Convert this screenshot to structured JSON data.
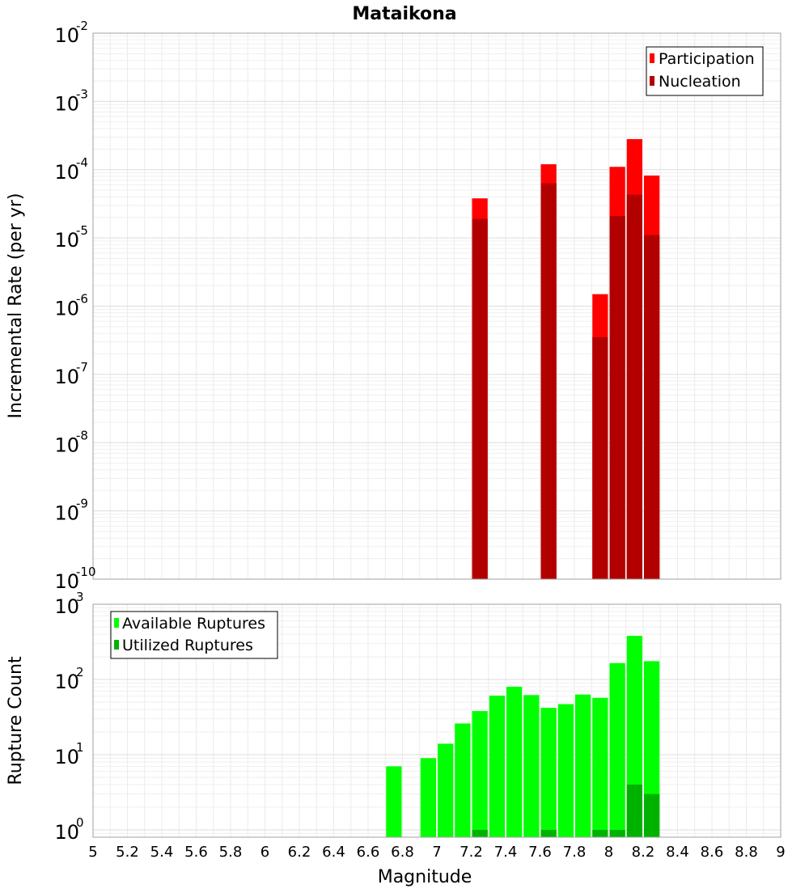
{
  "chart_data": [
    {
      "type": "bar",
      "title": "Mataikona",
      "ylabel": "Incremental Rate (per yr)",
      "yscale": "log",
      "ylim": [
        1e-10,
        0.01
      ],
      "xlim": [
        5,
        9
      ],
      "bin_width": 0.1,
      "y_ticks": [
        {
          "base": "10",
          "exp": "-10"
        },
        {
          "base": "10",
          "exp": "-9"
        },
        {
          "base": "10",
          "exp": "-8"
        },
        {
          "base": "10",
          "exp": "-7"
        },
        {
          "base": "10",
          "exp": "-6"
        },
        {
          "base": "10",
          "exp": "-5"
        },
        {
          "base": "10",
          "exp": "-4"
        },
        {
          "base": "10",
          "exp": "-3"
        },
        {
          "base": "10",
          "exp": "-2"
        }
      ],
      "legend": {
        "position": "top-right",
        "entries": [
          {
            "label": "Participation",
            "color": "#ff0000"
          },
          {
            "label": "Nucleation",
            "color": "#b20000"
          }
        ]
      },
      "series": [
        {
          "name": "Participation",
          "color": "#ff0000",
          "x": [
            7.25,
            7.65,
            7.95,
            8.05,
            8.15,
            8.25
          ],
          "values": [
            3.8e-05,
            0.00012,
            1.5e-06,
            0.00011,
            0.00028,
            8.2e-05
          ]
        },
        {
          "name": "Nucleation",
          "color": "#b20000",
          "x": [
            7.25,
            7.65,
            7.95,
            8.05,
            8.15,
            8.25
          ],
          "values": [
            1.9e-05,
            6.3e-05,
            3.5e-07,
            2.1e-05,
            4.3e-05,
            1.1e-05
          ]
        }
      ]
    },
    {
      "type": "bar",
      "xlabel": "Magnitude",
      "ylabel": "Rupture Count",
      "yscale": "log",
      "ylim": [
        0.8,
        1000
      ],
      "xlim": [
        5,
        9
      ],
      "bin_width": 0.1,
      "x_ticks": [
        "5",
        "5.2",
        "5.4",
        "5.6",
        "5.8",
        "6",
        "6.2",
        "6.4",
        "6.6",
        "6.8",
        "7",
        "7.2",
        "7.4",
        "7.6",
        "7.8",
        "8",
        "8.2",
        "8.4",
        "8.6",
        "8.8",
        "9"
      ],
      "y_ticks": [
        {
          "base": "10",
          "exp": "0"
        },
        {
          "base": "10",
          "exp": "1"
        },
        {
          "base": "10",
          "exp": "2"
        },
        {
          "base": "10",
          "exp": "3"
        }
      ],
      "legend": {
        "position": "top-left",
        "entries": [
          {
            "label": "Available Ruptures",
            "color": "#00ff00"
          },
          {
            "label": "Utilized Ruptures",
            "color": "#00b200"
          }
        ]
      },
      "series": [
        {
          "name": "Available Ruptures",
          "color": "#00ff00",
          "x": [
            6.75,
            6.95,
            7.05,
            7.15,
            7.25,
            7.35,
            7.45,
            7.55,
            7.65,
            7.75,
            7.85,
            7.95,
            8.05,
            8.15,
            8.25
          ],
          "values": [
            7,
            9,
            14,
            26,
            38,
            61,
            80,
            62,
            42,
            47,
            63,
            57,
            165,
            380,
            175
          ]
        },
        {
          "name": "Utilized Ruptures",
          "color": "#00b200",
          "x": [
            7.25,
            7.65,
            7.95,
            8.05,
            8.15,
            8.25
          ],
          "values": [
            1,
            1,
            1,
            1,
            4,
            3
          ]
        }
      ]
    }
  ]
}
